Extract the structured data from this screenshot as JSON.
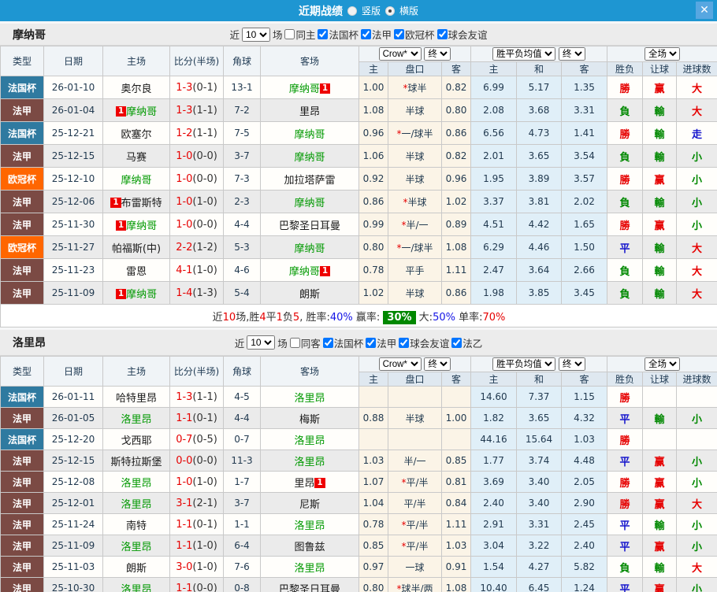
{
  "topbar": {
    "title": "近期战绩",
    "radio_vertical": "竖版",
    "radio_horizontal": "横版",
    "close": "✕"
  },
  "header": {
    "left_cols": [
      "类型",
      "日期",
      "主场",
      "比分(半场)",
      "角球",
      "客场"
    ],
    "odds_source": "Crow*",
    "final1": "终",
    "avg_label": "胜平负均值",
    "final2": "终",
    "scope": "全场",
    "odds_cols": [
      "主",
      "盘口",
      "客"
    ],
    "avg_cols": [
      "主",
      "和",
      "客"
    ],
    "result_cols": [
      "胜负",
      "让球",
      "进球数"
    ]
  },
  "colors": {
    "topbar": "#1e96d2",
    "type_colors": {
      "法国杯": "#2f7aa0",
      "法甲": "#7b4a44",
      "欧冠杯": "#ff6600"
    },
    "result": {
      "r": "res-r",
      "g": "res-g",
      "b": "res-b"
    },
    "highlight_team": "#009900",
    "score": "#e60000"
  },
  "sections": [
    {
      "team": "摩纳哥",
      "filter": {
        "near": "近",
        "count": "10",
        "games": "场",
        "same": {
          "label": "同主",
          "checked": false
        },
        "leagues": [
          {
            "label": "法国杯",
            "checked": true
          },
          {
            "label": "法甲",
            "checked": true
          },
          {
            "label": "欧冠杯",
            "checked": true
          },
          {
            "label": "球会友谊",
            "checked": true
          }
        ]
      },
      "rows": [
        {
          "type": "法国杯",
          "date": "26-01-10",
          "home": "奥尔良",
          "home_hl": false,
          "home_card": false,
          "score": "1-3",
          "half": "(0-1)",
          "corner": "13-1",
          "away": "摩纳哥",
          "away_hl": true,
          "away_card": true,
          "o1": [
            "1.00",
            "*球半",
            "0.82"
          ],
          "avg": [
            "6.99",
            "5.17",
            "1.35"
          ],
          "res": [
            "勝",
            "赢",
            "大"
          ],
          "resc": [
            "r",
            "r",
            "r"
          ]
        },
        {
          "type": "法甲",
          "date": "26-01-04",
          "home": "摩纳哥",
          "home_hl": true,
          "home_card": true,
          "score": "1-3",
          "half": "(1-1)",
          "corner": "7-2",
          "away": "里昂",
          "away_hl": false,
          "away_card": false,
          "o1": [
            "1.08",
            "半球",
            "0.80"
          ],
          "avg": [
            "2.08",
            "3.68",
            "3.31"
          ],
          "res": [
            "負",
            "輸",
            "大"
          ],
          "resc": [
            "g",
            "g",
            "r"
          ]
        },
        {
          "type": "法国杯",
          "date": "25-12-21",
          "home": "欧塞尔",
          "home_hl": false,
          "home_card": false,
          "score": "1-2",
          "half": "(1-1)",
          "corner": "7-5",
          "away": "摩纳哥",
          "away_hl": true,
          "away_card": false,
          "o1": [
            "0.96",
            "*一/球半",
            "0.86"
          ],
          "avg": [
            "6.56",
            "4.73",
            "1.41"
          ],
          "res": [
            "勝",
            "輸",
            "走"
          ],
          "resc": [
            "r",
            "g",
            "b"
          ]
        },
        {
          "type": "法甲",
          "date": "25-12-15",
          "home": "马赛",
          "home_hl": false,
          "home_card": false,
          "score": "1-0",
          "half": "(0-0)",
          "corner": "3-7",
          "away": "摩纳哥",
          "away_hl": true,
          "away_card": false,
          "o1": [
            "1.06",
            "半球",
            "0.82"
          ],
          "avg": [
            "2.01",
            "3.65",
            "3.54"
          ],
          "res": [
            "負",
            "輸",
            "小"
          ],
          "resc": [
            "g",
            "g",
            "g"
          ]
        },
        {
          "type": "欧冠杯",
          "date": "25-12-10",
          "home": "摩纳哥",
          "home_hl": true,
          "home_card": false,
          "score": "1-0",
          "half": "(0-0)",
          "corner": "7-3",
          "away": "加拉塔萨雷",
          "away_hl": false,
          "away_card": false,
          "o1": [
            "0.92",
            "半球",
            "0.96"
          ],
          "avg": [
            "1.95",
            "3.89",
            "3.57"
          ],
          "res": [
            "勝",
            "赢",
            "小"
          ],
          "resc": [
            "r",
            "r",
            "g"
          ]
        },
        {
          "type": "法甲",
          "date": "25-12-06",
          "home": "布雷斯特",
          "home_hl": false,
          "home_card": true,
          "score": "1-0",
          "half": "(1-0)",
          "corner": "2-3",
          "away": "摩纳哥",
          "away_hl": true,
          "away_card": false,
          "o1": [
            "0.86",
            "*半球",
            "1.02"
          ],
          "avg": [
            "3.37",
            "3.81",
            "2.02"
          ],
          "res": [
            "負",
            "輸",
            "小"
          ],
          "resc": [
            "g",
            "g",
            "g"
          ]
        },
        {
          "type": "法甲",
          "date": "25-11-30",
          "home": "摩纳哥",
          "home_hl": true,
          "home_card": true,
          "score": "1-0",
          "half": "(0-0)",
          "corner": "4-4",
          "away": "巴黎圣日耳曼",
          "away_hl": false,
          "away_card": false,
          "o1": [
            "0.99",
            "*半/一",
            "0.89"
          ],
          "avg": [
            "4.51",
            "4.42",
            "1.65"
          ],
          "res": [
            "勝",
            "赢",
            "小"
          ],
          "resc": [
            "r",
            "r",
            "g"
          ]
        },
        {
          "type": "欧冠杯",
          "date": "25-11-27",
          "home": "帕福斯(中)",
          "home_hl": false,
          "home_card": false,
          "score": "2-2",
          "half": "(1-2)",
          "corner": "5-3",
          "away": "摩纳哥",
          "away_hl": true,
          "away_card": false,
          "o1": [
            "0.80",
            "*一/球半",
            "1.08"
          ],
          "avg": [
            "6.29",
            "4.46",
            "1.50"
          ],
          "res": [
            "平",
            "輸",
            "大"
          ],
          "resc": [
            "b",
            "g",
            "r"
          ]
        },
        {
          "type": "法甲",
          "date": "25-11-23",
          "home": "雷恩",
          "home_hl": false,
          "home_card": false,
          "score": "4-1",
          "half": "(1-0)",
          "corner": "4-6",
          "away": "摩纳哥",
          "away_hl": true,
          "away_card": true,
          "o1": [
            "0.78",
            "平手",
            "1.11"
          ],
          "avg": [
            "2.47",
            "3.64",
            "2.66"
          ],
          "res": [
            "負",
            "輸",
            "大"
          ],
          "resc": [
            "g",
            "g",
            "r"
          ]
        },
        {
          "type": "法甲",
          "date": "25-11-09",
          "home": "摩纳哥",
          "home_hl": true,
          "home_card": true,
          "score": "1-4",
          "half": "(1-3)",
          "corner": "5-4",
          "away": "朗斯",
          "away_hl": false,
          "away_card": false,
          "o1": [
            "1.02",
            "半球",
            "0.86"
          ],
          "avg": [
            "1.98",
            "3.85",
            "3.45"
          ],
          "res": [
            "負",
            "輸",
            "大"
          ],
          "resc": [
            "g",
            "g",
            "r"
          ]
        }
      ],
      "summary": [
        {
          "t": "近",
          "c": ""
        },
        {
          "t": "10",
          "c": "seg-red"
        },
        {
          "t": "场,胜",
          "c": ""
        },
        {
          "t": "4",
          "c": "seg-red"
        },
        {
          "t": "平",
          "c": ""
        },
        {
          "t": "1",
          "c": "seg-red"
        },
        {
          "t": "负",
          "c": ""
        },
        {
          "t": "5",
          "c": "seg-red"
        },
        {
          "t": ", 胜率:",
          "c": ""
        },
        {
          "t": "40%",
          "c": "seg-blue"
        },
        {
          "t": " 赢率: ",
          "c": ""
        },
        {
          "t": "30%",
          "c": "seg-badge"
        },
        {
          "t": " 大:",
          "c": ""
        },
        {
          "t": "50%",
          "c": "seg-blue"
        },
        {
          "t": " 单率:",
          "c": ""
        },
        {
          "t": "70%",
          "c": "seg-red"
        }
      ]
    },
    {
      "team": "洛里昂",
      "filter": {
        "near": "近",
        "count": "10",
        "games": "场",
        "same": {
          "label": "同客",
          "checked": false
        },
        "leagues": [
          {
            "label": "法国杯",
            "checked": true
          },
          {
            "label": "法甲",
            "checked": true
          },
          {
            "label": "球会友谊",
            "checked": true
          },
          {
            "label": "法乙",
            "checked": true
          }
        ]
      },
      "rows": [
        {
          "type": "法国杯",
          "date": "26-01-11",
          "home": "哈特里昂",
          "home_hl": false,
          "home_card": false,
          "score": "1-3",
          "half": "(1-1)",
          "corner": "4-5",
          "away": "洛里昂",
          "away_hl": true,
          "away_card": false,
          "o1": [
            "",
            "",
            ""
          ],
          "avg": [
            "14.60",
            "7.37",
            "1.15"
          ],
          "res": [
            "勝",
            "",
            ""
          ],
          "resc": [
            "r",
            "",
            ""
          ]
        },
        {
          "type": "法甲",
          "date": "26-01-05",
          "home": "洛里昂",
          "home_hl": true,
          "home_card": false,
          "score": "1-1",
          "half": "(0-1)",
          "corner": "4-4",
          "away": "梅斯",
          "away_hl": false,
          "away_card": false,
          "o1": [
            "0.88",
            "半球",
            "1.00"
          ],
          "avg": [
            "1.82",
            "3.65",
            "4.32"
          ],
          "res": [
            "平",
            "輸",
            "小"
          ],
          "resc": [
            "b",
            "g",
            "g"
          ]
        },
        {
          "type": "法国杯",
          "date": "25-12-20",
          "home": "戈西耶",
          "home_hl": false,
          "home_card": false,
          "score": "0-7",
          "half": "(0-5)",
          "corner": "0-7",
          "away": "洛里昂",
          "away_hl": true,
          "away_card": false,
          "o1": [
            "",
            "",
            ""
          ],
          "avg": [
            "44.16",
            "15.64",
            "1.03"
          ],
          "res": [
            "勝",
            "",
            ""
          ],
          "resc": [
            "r",
            "",
            ""
          ]
        },
        {
          "type": "法甲",
          "date": "25-12-15",
          "home": "斯特拉斯堡",
          "home_hl": false,
          "home_card": false,
          "score": "0-0",
          "half": "(0-0)",
          "corner": "11-3",
          "away": "洛里昂",
          "away_hl": true,
          "away_card": false,
          "o1": [
            "1.03",
            "半/一",
            "0.85"
          ],
          "avg": [
            "1.77",
            "3.74",
            "4.48"
          ],
          "res": [
            "平",
            "赢",
            "小"
          ],
          "resc": [
            "b",
            "r",
            "g"
          ]
        },
        {
          "type": "法甲",
          "date": "25-12-08",
          "home": "洛里昂",
          "home_hl": true,
          "home_card": false,
          "score": "1-0",
          "half": "(1-0)",
          "corner": "1-7",
          "away": "里昂",
          "away_hl": false,
          "away_card": true,
          "o1": [
            "1.07",
            "*平/半",
            "0.81"
          ],
          "avg": [
            "3.69",
            "3.40",
            "2.05"
          ],
          "res": [
            "勝",
            "赢",
            "小"
          ],
          "resc": [
            "r",
            "r",
            "g"
          ]
        },
        {
          "type": "法甲",
          "date": "25-12-01",
          "home": "洛里昂",
          "home_hl": true,
          "home_card": false,
          "score": "3-1",
          "half": "(2-1)",
          "corner": "3-7",
          "away": "尼斯",
          "away_hl": false,
          "away_card": false,
          "o1": [
            "1.04",
            "平/半",
            "0.84"
          ],
          "avg": [
            "2.40",
            "3.40",
            "2.90"
          ],
          "res": [
            "勝",
            "赢",
            "大"
          ],
          "resc": [
            "r",
            "r",
            "r"
          ]
        },
        {
          "type": "法甲",
          "date": "25-11-24",
          "home": "南特",
          "home_hl": false,
          "home_card": false,
          "score": "1-1",
          "half": "(0-1)",
          "corner": "1-1",
          "away": "洛里昂",
          "away_hl": true,
          "away_card": false,
          "o1": [
            "0.78",
            "*平/半",
            "1.11"
          ],
          "avg": [
            "2.91",
            "3.31",
            "2.45"
          ],
          "res": [
            "平",
            "輸",
            "小"
          ],
          "resc": [
            "b",
            "g",
            "g"
          ]
        },
        {
          "type": "法甲",
          "date": "25-11-09",
          "home": "洛里昂",
          "home_hl": true,
          "home_card": false,
          "score": "1-1",
          "half": "(1-0)",
          "corner": "6-4",
          "away": "图鲁兹",
          "away_hl": false,
          "away_card": false,
          "o1": [
            "0.85",
            "*平/半",
            "1.03"
          ],
          "avg": [
            "3.04",
            "3.22",
            "2.40"
          ],
          "res": [
            "平",
            "赢",
            "小"
          ],
          "resc": [
            "b",
            "r",
            "g"
          ]
        },
        {
          "type": "法甲",
          "date": "25-11-03",
          "home": "朗斯",
          "home_hl": false,
          "home_card": false,
          "score": "3-0",
          "half": "(1-0)",
          "corner": "7-6",
          "away": "洛里昂",
          "away_hl": true,
          "away_card": false,
          "o1": [
            "0.97",
            "一球",
            "0.91"
          ],
          "avg": [
            "1.54",
            "4.27",
            "5.82"
          ],
          "res": [
            "負",
            "輸",
            "大"
          ],
          "resc": [
            "g",
            "g",
            "r"
          ]
        },
        {
          "type": "法甲",
          "date": "25-10-30",
          "home": "洛里昂",
          "home_hl": true,
          "home_card": false,
          "score": "1-1",
          "half": "(0-0)",
          "corner": "0-8",
          "away": "巴黎圣日耳曼",
          "away_hl": false,
          "away_card": false,
          "o1": [
            "0.80",
            "*球半/两",
            "1.08"
          ],
          "avg": [
            "10.40",
            "6.45",
            "1.24"
          ],
          "res": [
            "平",
            "赢",
            "小"
          ],
          "resc": [
            "b",
            "r",
            "g"
          ]
        }
      ],
      "summary": null
    }
  ]
}
